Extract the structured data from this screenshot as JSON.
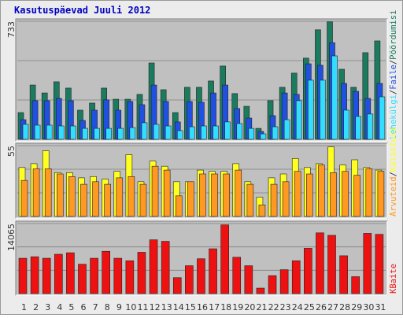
{
  "title": "Kasutuspäevad Juuli 2012",
  "legend_separator": "/",
  "chart_data": [
    {
      "type": "bar",
      "ylim": [
        0,
        733
      ],
      "yticks": [
        733
      ],
      "series": [
        {
          "name": "Pöördumisi",
          "color": "#1b7b5f",
          "values": [
            166,
            337,
            288,
            357,
            318,
            181,
            225,
            318,
            249,
            249,
            279,
            474,
            308,
            166,
            323,
            323,
            362,
            455,
            284,
            205,
            68,
            240,
            323,
            411,
            504,
            680,
            729,
            435,
            323,
            538,
            611
          ]
        },
        {
          "name": "Faile",
          "color": "#2050e0",
          "values": [
            122,
            240,
            240,
            254,
            240,
            117,
            181,
            245,
            181,
            235,
            215,
            337,
            235,
            108,
            235,
            230,
            288,
            337,
            191,
            132,
            49,
            147,
            288,
            279,
            469,
            460,
            600,
            347,
            298,
            254,
            347
          ]
        },
        {
          "name": "Lehekülgi",
          "color": "#33ddff",
          "values": [
            93,
            88,
            88,
            83,
            83,
            68,
            68,
            68,
            68,
            73,
            103,
            93,
            83,
            54,
            78,
            83,
            83,
            108,
            98,
            68,
            34,
            78,
            122,
            240,
            367,
            367,
            518,
            181,
            142,
            157,
            264
          ]
        }
      ]
    },
    {
      "type": "bar",
      "ylim": [
        0,
        55
      ],
      "yticks": [
        55
      ],
      "series": [
        {
          "name": "Külastusi",
          "color": "#ffff22",
          "values": [
            38,
            41,
            51,
            34,
            34,
            30,
            31,
            29,
            35,
            48,
            27,
            43,
            39,
            27,
            27,
            36,
            35,
            35,
            41,
            27,
            15,
            30,
            33,
            45,
            38,
            41,
            54,
            40,
            44,
            38,
            36
          ]
        },
        {
          "name": "Arvuteid",
          "color": "#ff9922",
          "values": [
            28,
            37,
            37,
            33,
            31,
            25,
            27,
            25,
            30,
            31,
            25,
            39,
            36,
            16,
            27,
            33,
            33,
            33,
            36,
            25,
            9,
            25,
            27,
            35,
            33,
            40,
            34,
            35,
            32,
            37,
            35
          ]
        }
      ]
    },
    {
      "type": "bar",
      "ylim": [
        0,
        14065
      ],
      "yticks": [
        14065
      ],
      "series": [
        {
          "name": "KBaite",
          "color": "#ee1111",
          "values": [
            7100,
            7400,
            7100,
            7900,
            8200,
            5900,
            7100,
            8500,
            7100,
            6600,
            8300,
            10800,
            10500,
            3200,
            5600,
            7000,
            9000,
            13800,
            7300,
            5600,
            1100,
            3600,
            4800,
            6600,
            9100,
            12200,
            11700,
            7600,
            3400,
            12100,
            11900
          ]
        }
      ],
      "categories": [
        "1",
        "2",
        "3",
        "4",
        "5",
        "6",
        "7",
        "8",
        "9",
        "10",
        "11",
        "12",
        "13",
        "14",
        "15",
        "16",
        "17",
        "18",
        "19",
        "20",
        "21",
        "22",
        "23",
        "24",
        "25",
        "26",
        "27",
        "28",
        "29",
        "30",
        "31"
      ],
      "label_color": "#1a3a8a",
      "weekend_color": "#2a8a5a",
      "weekend_categories": [
        0,
        6,
        7,
        13,
        14,
        20,
        21,
        27,
        28
      ]
    }
  ]
}
